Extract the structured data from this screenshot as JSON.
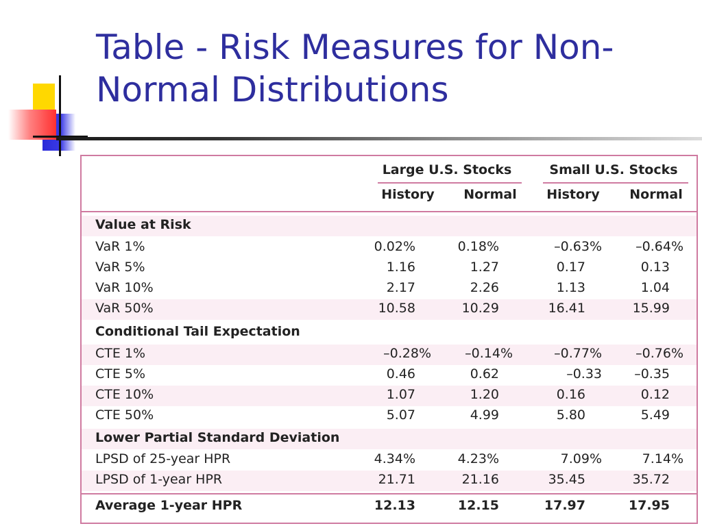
{
  "slide": {
    "title": "Table - Risk Measures for Non-Normal Distributions"
  },
  "table": {
    "groups": [
      "Large U.S. Stocks",
      "Small U.S. Stocks"
    ],
    "subheaders": [
      "History",
      "Normal",
      "History",
      "Normal"
    ],
    "sections": [
      {
        "title": "Value at Risk",
        "rows": [
          {
            "label": "VaR 1%",
            "values": [
              "0.02%",
              "0.18%",
              "–0.63%",
              "–0.64%"
            ]
          },
          {
            "label": "VaR 5%",
            "values": [
              "1.16",
              "1.27",
              "0.17",
              "0.13"
            ]
          },
          {
            "label": "VaR 10%",
            "values": [
              "2.17",
              "2.26",
              "1.13",
              "1.04"
            ]
          },
          {
            "label": "VaR 50%",
            "values": [
              "10.58",
              "10.29",
              "16.41",
              "15.99"
            ]
          }
        ]
      },
      {
        "title": "Conditional Tail Expectation",
        "rows": [
          {
            "label": "CTE 1%",
            "values": [
              "–0.28%",
              "–0.14%",
              "–0.77%",
              "–0.76%"
            ]
          },
          {
            "label": "CTE 5%",
            "values": [
              "0.46",
              "0.62",
              "–0.33",
              "–0.35"
            ]
          },
          {
            "label": "CTE 10%",
            "values": [
              "1.07",
              "1.20",
              "0.16",
              "0.12"
            ]
          },
          {
            "label": "CTE 50%",
            "values": [
              "5.07",
              "4.99",
              "5.80",
              "5.49"
            ]
          }
        ]
      },
      {
        "title": "Lower Partial Standard Deviation",
        "rows": [
          {
            "label": "LPSD of 25-year HPR",
            "values": [
              "4.34%",
              "4.23%",
              "7.09%",
              "7.14%"
            ]
          },
          {
            "label": "LPSD of 1-year HPR",
            "values": [
              "21.71",
              "21.16",
              "35.45",
              "35.72"
            ]
          }
        ]
      }
    ],
    "average": {
      "label": "Average 1-year HPR",
      "values": [
        "12.13",
        "12.15",
        "17.97",
        "17.95"
      ]
    }
  },
  "colors": {
    "title": "#2e2e9e",
    "table_border": "#cf7aa0",
    "row_shade": "#fbeef4",
    "deco_yellow": "#ffd800",
    "deco_blue": "#2a2ad8",
    "deco_red": "#ff3030"
  }
}
